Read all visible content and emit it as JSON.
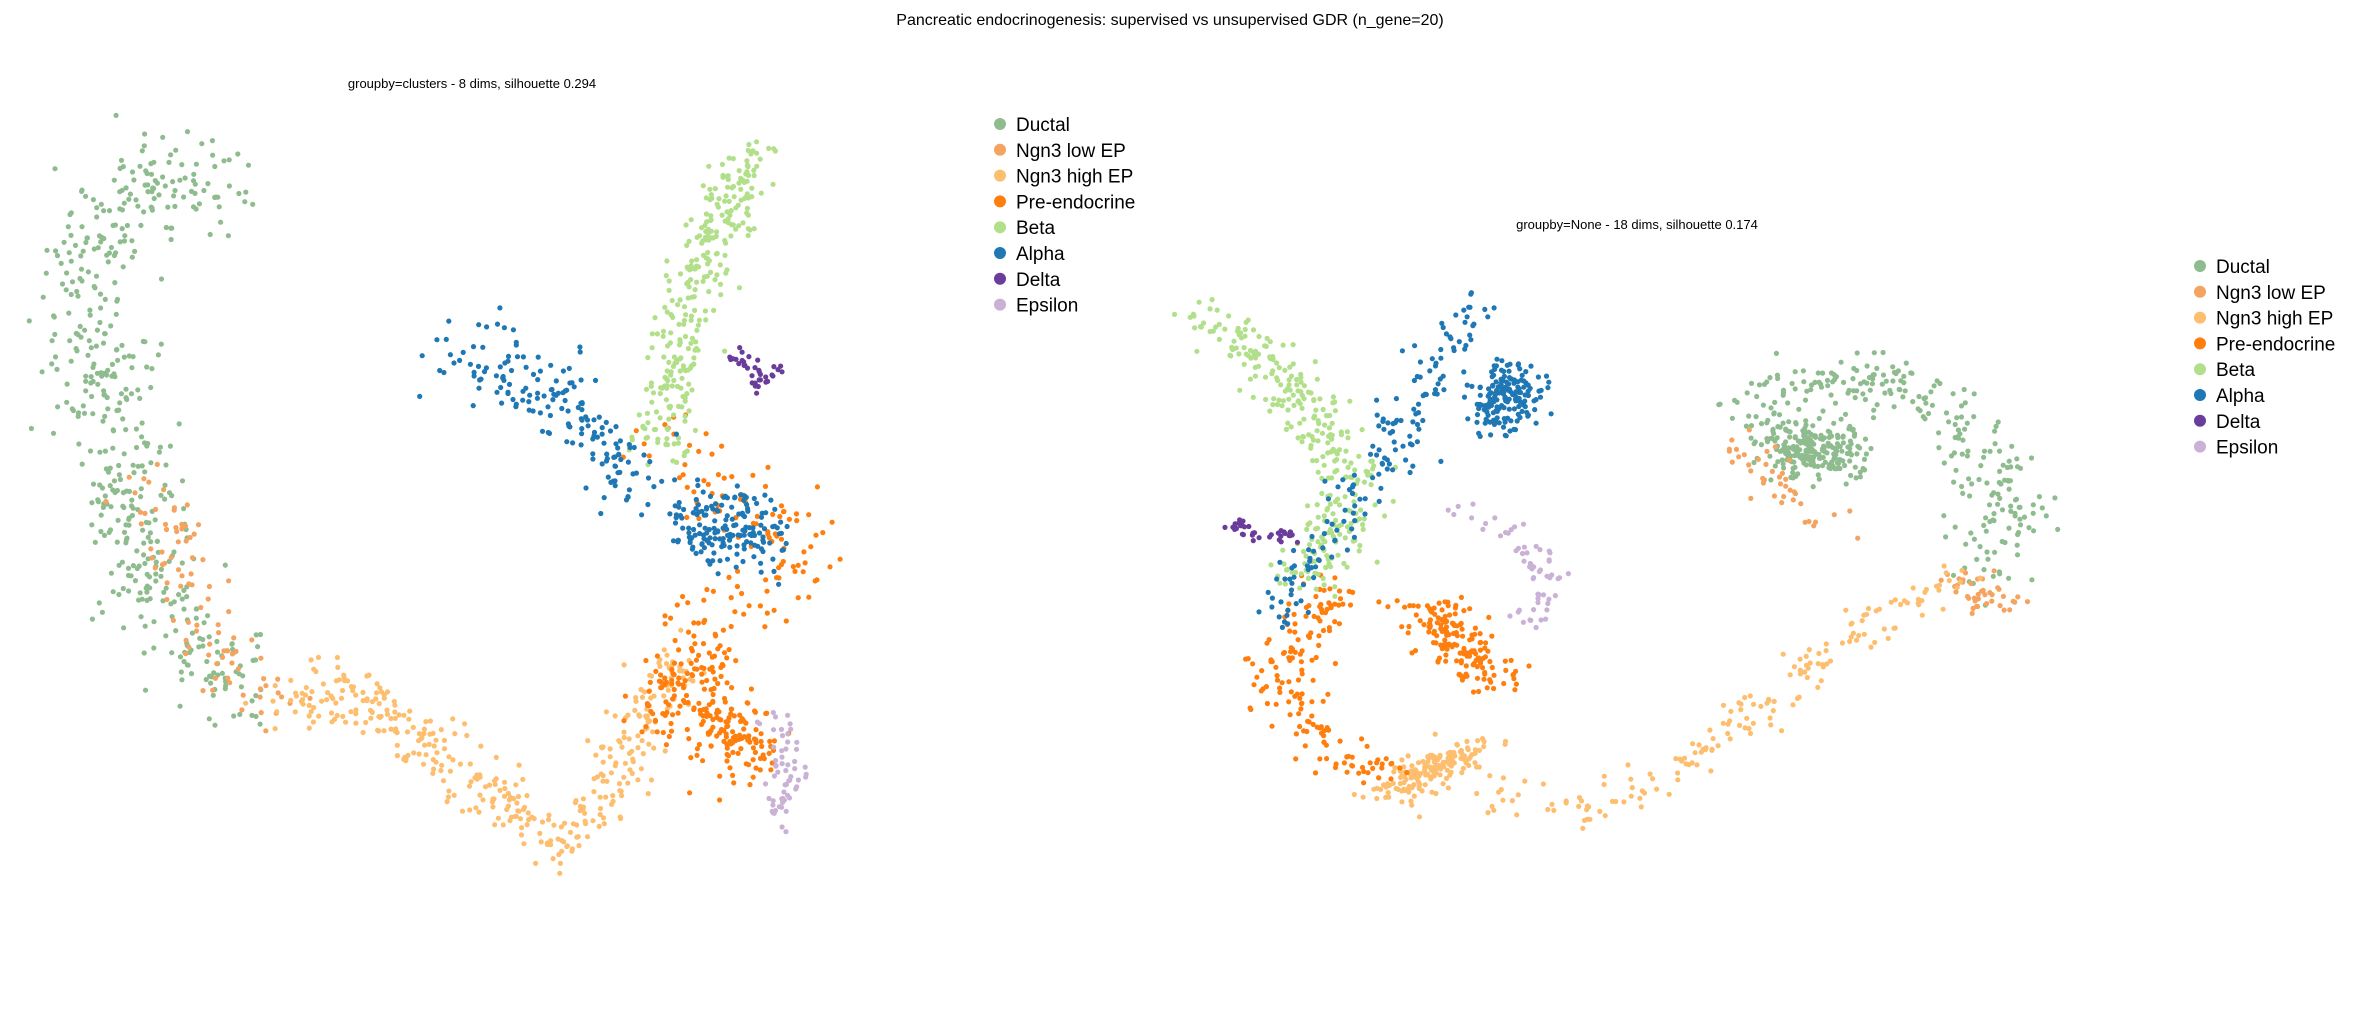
{
  "figure_title": "Pancreatic endocrinogenesis: supervised vs unsupervised GDR (n_gene=20)",
  "categories": [
    {
      "name": "Ductal",
      "color": "#8fbc8f"
    },
    {
      "name": "Ngn3 low EP",
      "color": "#f4a460"
    },
    {
      "name": "Ngn3 high EP",
      "color": "#fdbf6f"
    },
    {
      "name": "Pre-endocrine",
      "color": "#ff7f0e"
    },
    {
      "name": "Beta",
      "color": "#b2df8a"
    },
    {
      "name": "Alpha",
      "color": "#1f77b4"
    },
    {
      "name": "Delta",
      "color": "#6a3d9a"
    },
    {
      "name": "Epsilon",
      "color": "#cab2d6"
    }
  ],
  "chart_data": [
    {
      "type": "scatter",
      "title": "groupby=clusters  -  8 dims, silhouette 0.294",
      "xlabel": "",
      "ylabel": "",
      "axes": "off",
      "grid": false,
      "legend_position": "right",
      "xlim": [
        0,
        1
      ],
      "ylim": [
        0,
        1
      ],
      "clusters": [
        {
          "category": "Ductal",
          "paths": [
            [
              [
                0.2,
                0.06
              ],
              [
                0.14,
                0.05
              ],
              [
                0.07,
                0.1
              ],
              [
                0.04,
                0.22
              ],
              [
                0.08,
                0.34
              ],
              [
                0.1,
                0.46
              ],
              [
                0.13,
                0.56
              ],
              [
                0.19,
                0.64
              ],
              [
                0.24,
                0.68
              ]
            ]
          ],
          "spread": 0.055,
          "count": 500
        },
        {
          "category": "Ngn3 low EP",
          "paths": [
            [
              [
                0.13,
                0.42
              ],
              [
                0.17,
                0.55
              ],
              [
                0.22,
                0.65
              ],
              [
                0.27,
                0.69
              ]
            ]
          ],
          "spread": 0.04,
          "count": 90
        },
        {
          "category": "Ngn3 high EP",
          "paths": [
            [
              [
                0.28,
                0.69
              ],
              [
                0.34,
                0.66
              ],
              [
                0.4,
                0.7
              ],
              [
                0.48,
                0.76
              ],
              [
                0.54,
                0.81
              ],
              [
                0.6,
                0.86
              ],
              [
                0.66,
                0.8
              ],
              [
                0.7,
                0.7
              ],
              [
                0.75,
                0.62
              ]
            ]
          ],
          "spread": 0.035,
          "count": 380
        },
        {
          "category": "Pre-endocrine",
          "paths": [
            [
              [
                0.72,
                0.36
              ],
              [
                0.8,
                0.45
              ],
              [
                0.9,
                0.48
              ],
              [
                0.82,
                0.57
              ],
              [
                0.74,
                0.6
              ]
            ],
            [
              [
                0.72,
                0.7
              ],
              [
                0.78,
                0.63
              ]
            ],
            [
              [
                0.79,
                0.71
              ],
              [
                0.84,
                0.74
              ]
            ]
          ],
          "spread": 0.045,
          "count": 350
        },
        {
          "category": "Beta",
          "paths": [
            [
              [
                0.84,
                0.02
              ],
              [
                0.8,
                0.09
              ],
              [
                0.76,
                0.18
              ],
              [
                0.74,
                0.28
              ],
              [
                0.72,
                0.38
              ]
            ]
          ],
          "spread": 0.03,
          "count": 300
        },
        {
          "category": "Alpha",
          "paths": [
            [
              [
                0.48,
                0.26
              ],
              [
                0.54,
                0.28
              ],
              [
                0.62,
                0.32
              ],
              [
                0.66,
                0.38
              ],
              [
                0.7,
                0.43
              ]
            ],
            [
              [
                0.76,
                0.47
              ],
              [
                0.84,
                0.48
              ]
            ]
          ],
          "spread": 0.045,
          "count": 340
        },
        {
          "category": "Delta",
          "paths": [
            [
              [
                0.81,
                0.26
              ],
              [
                0.84,
                0.3
              ],
              [
                0.87,
                0.28
              ]
            ]
          ],
          "spread": 0.012,
          "count": 35
        },
        {
          "category": "Epsilon",
          "paths": [
            [
              [
                0.86,
                0.71
              ],
              [
                0.88,
                0.77
              ],
              [
                0.86,
                0.82
              ]
            ]
          ],
          "spread": 0.02,
          "count": 60
        }
      ]
    },
    {
      "type": "scatter",
      "title": "groupby=None  -  18 dims, silhouette 0.174",
      "xlabel": "",
      "ylabel": "",
      "axes": "off",
      "grid": false,
      "legend_position": "right",
      "xlim": [
        0,
        1
      ],
      "ylim": [
        0,
        1
      ],
      "clusters": [
        {
          "category": "Ductal",
          "paths": [
            [
              [
                0.6,
                0.24
              ],
              [
                0.68,
                0.2
              ],
              [
                0.76,
                0.18
              ],
              [
                0.84,
                0.24
              ],
              [
                0.88,
                0.34
              ],
              [
                0.92,
                0.44
              ],
              [
                0.88,
                0.54
              ]
            ],
            [
              [
                0.66,
                0.3
              ],
              [
                0.72,
                0.33
              ]
            ]
          ],
          "spread": 0.045,
          "count": 480
        },
        {
          "category": "Ngn3 low EP",
          "paths": [
            [
              [
                0.6,
                0.3
              ],
              [
                0.66,
                0.38
              ],
              [
                0.7,
                0.44
              ]
            ],
            [
              [
                0.86,
                0.55
              ],
              [
                0.9,
                0.58
              ]
            ]
          ],
          "spread": 0.03,
          "count": 80
        },
        {
          "category": "Ngn3 high EP",
          "paths": [
            [
              [
                0.86,
                0.54
              ],
              [
                0.78,
                0.6
              ],
              [
                0.7,
                0.68
              ],
              [
                0.62,
                0.78
              ],
              [
                0.54,
                0.88
              ],
              [
                0.44,
                0.94
              ],
              [
                0.34,
                0.92
              ]
            ],
            [
              [
                0.32,
                0.84
              ],
              [
                0.26,
                0.88
              ],
              [
                0.22,
                0.92
              ]
            ]
          ],
          "spread": 0.03,
          "count": 340
        },
        {
          "category": "Pre-endocrine",
          "paths": [
            [
              [
                0.16,
                0.54
              ],
              [
                0.12,
                0.66
              ],
              [
                0.1,
                0.74
              ],
              [
                0.16,
                0.84
              ],
              [
                0.22,
                0.88
              ]
            ],
            [
              [
                0.26,
                0.58
              ],
              [
                0.3,
                0.66
              ],
              [
                0.34,
                0.72
              ]
            ]
          ],
          "spread": 0.035,
          "count": 330
        },
        {
          "category": "Beta",
          "paths": [
            [
              [
                0.02,
                0.08
              ],
              [
                0.08,
                0.16
              ],
              [
                0.14,
                0.26
              ],
              [
                0.18,
                0.36
              ],
              [
                0.16,
                0.46
              ],
              [
                0.12,
                0.56
              ]
            ]
          ],
          "spread": 0.035,
          "count": 310
        },
        {
          "category": "Alpha",
          "paths": [
            [
              [
                0.32,
                0.06
              ],
              [
                0.28,
                0.16
              ],
              [
                0.24,
                0.26
              ],
              [
                0.2,
                0.36
              ],
              [
                0.16,
                0.46
              ],
              [
                0.08,
                0.62
              ]
            ],
            [
              [
                0.36,
                0.18
              ],
              [
                0.34,
                0.26
              ]
            ]
          ],
          "spread": 0.035,
          "count": 330
        },
        {
          "category": "Delta",
          "paths": [
            [
              [
                0.04,
                0.44
              ],
              [
                0.08,
                0.47
              ],
              [
                0.12,
                0.46
              ]
            ]
          ],
          "spread": 0.012,
          "count": 35
        },
        {
          "category": "Epsilon",
          "paths": [
            [
              [
                0.3,
                0.42
              ],
              [
                0.36,
                0.46
              ],
              [
                0.4,
                0.54
              ],
              [
                0.38,
                0.62
              ]
            ]
          ],
          "spread": 0.02,
          "count": 60
        }
      ]
    }
  ]
}
